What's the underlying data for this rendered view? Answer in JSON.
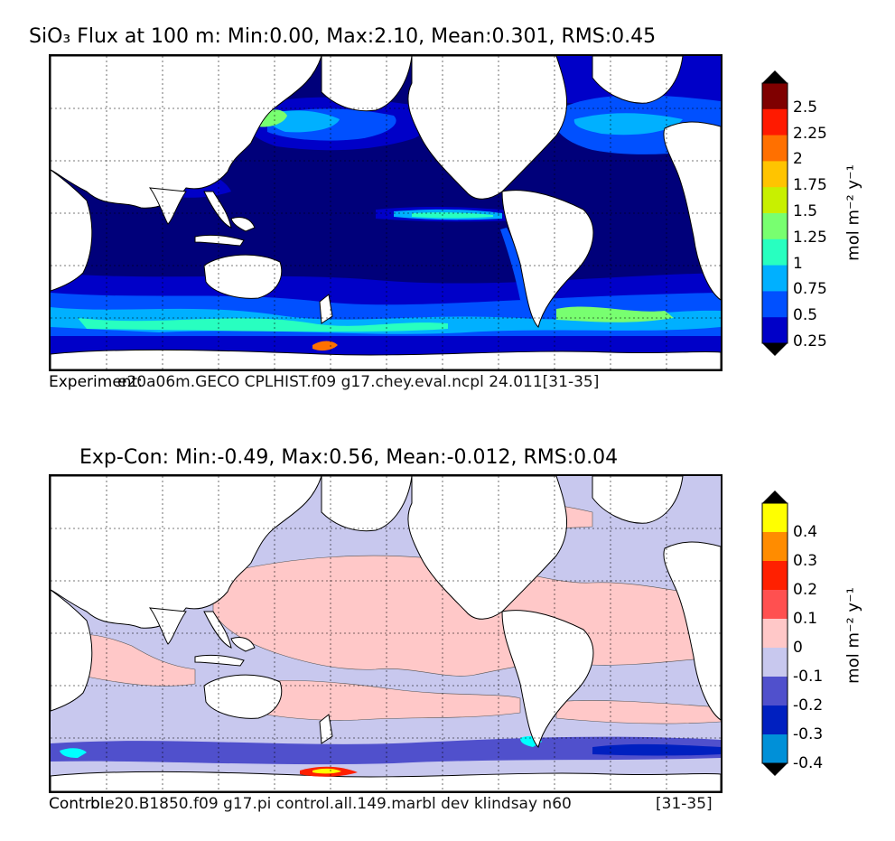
{
  "panel_top": {
    "title": "SiO₃ Flux at 100 m: Min:0.00, Max:2.10, Mean:0.301, RMS:0.45",
    "caption_left": "Experiment:",
    "caption_right": "e20a06m.GECO CPLHIST.f09 g17.chey.eval.ncpl 24.011[31-35]",
    "units": "mol m⁻² y⁻¹",
    "colorbar": {
      "ticks": [
        "2.5",
        "2.25",
        "2",
        "1.75",
        "1.5",
        "1.25",
        "1",
        "0.75",
        "0.5",
        "0.25"
      ],
      "colors": [
        "#7f0000",
        "#ff1a00",
        "#ff7000",
        "#ffc400",
        "#c8f000",
        "#78ff70",
        "#28ffc0",
        "#00b0ff",
        "#0050ff",
        "#0000c8",
        "#00007a"
      ],
      "extend": "both"
    },
    "ocean_color": "#00007a"
  },
  "panel_bottom": {
    "title": "Exp-Con: Min:-0.49, Max:0.56, Mean:-0.012, RMS:0.04",
    "caption_left": "Control:",
    "caption_right": "b.e20.B1850.f09 g17.pi control.all.149.marbl dev klindsay n60",
    "caption_years": "[31-35]",
    "units": "mol m⁻² y⁻¹",
    "colorbar": {
      "ticks": [
        "0.4",
        "0.3",
        "0.2",
        "0.1",
        "0",
        "-0.1",
        "-0.2",
        "-0.3",
        "-0.4"
      ],
      "colors": [
        "#ffff00",
        "#ff8c00",
        "#ff2000",
        "#ff5050",
        "#ffc8c8",
        "#c8c8ee",
        "#5050cc",
        "#0020c0",
        "#0090d8",
        "#00ffff"
      ],
      "extend": "both"
    },
    "ocean_color": "#c8c8ee"
  }
}
